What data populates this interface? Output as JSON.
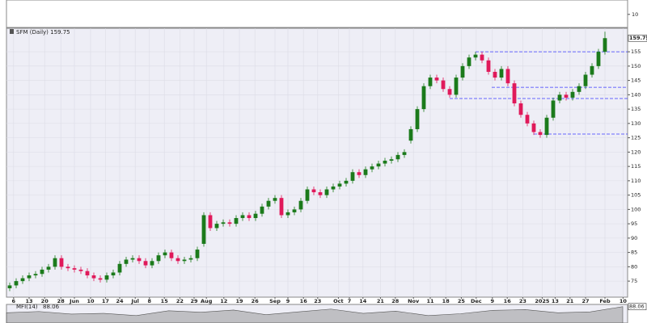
{
  "chart_data": [
    {
      "type": "candlestick",
      "title": "SFM (Daily) 159.75",
      "up_color": "#1b7a1b",
      "down_color": "#e0195a",
      "level_color": "#3a3aff",
      "grid": true,
      "xlim": [
        -0.5,
        95.5
      ],
      "ylim": [
        69.4,
        163.2
      ],
      "yticks": [
        75,
        80,
        85,
        90,
        95,
        100,
        105,
        110,
        115,
        120,
        125,
        130,
        135,
        140,
        145,
        150,
        155
      ],
      "xticks": [
        {
          "value": 0.6,
          "label": "6"
        },
        {
          "value": 3,
          "label": "13"
        },
        {
          "value": 5.4,
          "label": "20"
        },
        {
          "value": 7.9,
          "label": "28"
        },
        {
          "value": 10,
          "label": "Jun"
        },
        {
          "value": 12.5,
          "label": "10"
        },
        {
          "value": 14.8,
          "label": "17"
        },
        {
          "value": 17,
          "label": "24"
        },
        {
          "value": 19.4,
          "label": "Jul"
        },
        {
          "value": 21.6,
          "label": "8"
        },
        {
          "value": 23.9,
          "label": "15"
        },
        {
          "value": 26.3,
          "label": "22"
        },
        {
          "value": 28.5,
          "label": "29"
        },
        {
          "value": 30.4,
          "label": "Aug"
        },
        {
          "value": 33.1,
          "label": "12"
        },
        {
          "value": 35.5,
          "label": "19"
        },
        {
          "value": 37.9,
          "label": "26"
        },
        {
          "value": 41,
          "label": "Sep"
        },
        {
          "value": 43,
          "label": "9"
        },
        {
          "value": 45.4,
          "label": "16"
        },
        {
          "value": 47.6,
          "label": "23"
        },
        {
          "value": 50.8,
          "label": "Oct"
        },
        {
          "value": 52.5,
          "label": "7"
        },
        {
          "value": 54.6,
          "label": "14"
        },
        {
          "value": 57.3,
          "label": "21"
        },
        {
          "value": 59.6,
          "label": "28"
        },
        {
          "value": 62.4,
          "label": "Nov"
        },
        {
          "value": 65,
          "label": "11"
        },
        {
          "value": 67.4,
          "label": "18"
        },
        {
          "value": 69.8,
          "label": "25"
        },
        {
          "value": 72.1,
          "label": "Dec"
        },
        {
          "value": 74.6,
          "label": "9"
        },
        {
          "value": 76.9,
          "label": "16"
        },
        {
          "value": 79.3,
          "label": "23"
        },
        {
          "value": 82.3,
          "label": "2025"
        },
        {
          "value": 84.3,
          "label": "13"
        },
        {
          "value": 86.6,
          "label": "21"
        },
        {
          "value": 89,
          "label": "27"
        },
        {
          "value": 92,
          "label": "Feb"
        },
        {
          "value": 94.8,
          "label": "10"
        }
      ],
      "levels": [
        {
          "value": 155,
          "start": 72
        },
        {
          "value": 142.6,
          "start": 74.5
        },
        {
          "value": 138.7,
          "start": 68
        },
        {
          "value": 126.3,
          "start": 81
        }
      ],
      "open": [
        72.5,
        73.5,
        75,
        76,
        77,
        77.5,
        79,
        80,
        83,
        80,
        79.5,
        79,
        78.5,
        77,
        76,
        75.5,
        77,
        78,
        81,
        82.5,
        83,
        82,
        80.5,
        82,
        84,
        85,
        83,
        82,
        82.5,
        83,
        88,
        98,
        93.5,
        95,
        95.5,
        95,
        97,
        98,
        97,
        98.5,
        101,
        103,
        104,
        98,
        99,
        100,
        103,
        107,
        106,
        105,
        107,
        108,
        109,
        110,
        113,
        112,
        114,
        115,
        116,
        117,
        117.5,
        119,
        124,
        128,
        135,
        143,
        146,
        145,
        142,
        140,
        146,
        150,
        153,
        154,
        152,
        148,
        146,
        149,
        144,
        137,
        133,
        130,
        127,
        126,
        132,
        138,
        140,
        139,
        141,
        143,
        147,
        150,
        155
      ],
      "high": [
        74.5,
        76,
        77,
        78,
        78.5,
        80,
        81,
        84,
        84,
        81,
        80.5,
        80,
        79.5,
        78,
        77,
        78,
        79,
        82,
        83.5,
        84,
        84,
        83,
        83,
        85,
        86,
        86,
        84,
        83.5,
        84,
        87,
        99,
        99,
        96,
        96.5,
        96.5,
        98,
        99,
        99,
        99.5,
        102,
        104,
        105,
        105,
        100,
        101,
        104,
        108,
        108,
        107,
        108,
        109,
        110,
        111,
        114,
        114,
        115,
        116,
        117,
        118,
        118.5,
        120,
        121,
        129,
        136,
        144,
        147,
        147,
        146,
        143,
        147,
        151,
        154,
        155,
        155,
        153,
        149,
        150,
        150,
        145,
        138,
        134,
        131,
        128,
        133,
        139,
        141,
        141,
        142,
        144,
        148,
        151,
        156,
        162
      ],
      "low": [
        71.5,
        72.5,
        74,
        75,
        76,
        76.5,
        78,
        79,
        79,
        78.5,
        78,
        77.5,
        76,
        75,
        74.5,
        74.5,
        76,
        77,
        80,
        81.5,
        81,
        79.5,
        79.5,
        81,
        83,
        82,
        81,
        81,
        81.5,
        82,
        87,
        92.5,
        92.5,
        94,
        94,
        94,
        96,
        96,
        96,
        97.5,
        100,
        102,
        97,
        97,
        98,
        99,
        102,
        105,
        104,
        104,
        106,
        107,
        108,
        109,
        111,
        111,
        113,
        114,
        115,
        116,
        116.5,
        118,
        123,
        127,
        134,
        142,
        144,
        141,
        139,
        139,
        145,
        149,
        152,
        151,
        147,
        145,
        145,
        143,
        136,
        132,
        129,
        126,
        125,
        125,
        131,
        137,
        138,
        138,
        140,
        142,
        146,
        149,
        154
      ],
      "close": [
        73.5,
        75,
        76,
        77,
        77.5,
        79,
        80,
        83,
        80,
        79.5,
        79,
        78.5,
        77,
        76,
        75.5,
        77,
        78,
        81,
        82.5,
        83,
        82,
        80.5,
        82,
        84,
        85,
        83,
        82,
        82.5,
        83,
        86,
        98,
        93.5,
        95,
        95.5,
        95,
        97,
        98,
        97,
        98.5,
        101,
        103,
        104,
        98,
        99,
        100,
        103,
        107,
        106,
        105,
        107,
        108,
        109,
        110,
        113,
        112,
        114,
        115,
        116,
        117,
        117.5,
        119,
        120,
        128,
        135,
        143,
        146,
        145,
        142,
        140,
        146,
        150,
        153,
        154,
        152,
        148,
        146,
        149,
        144,
        137,
        133,
        130,
        127,
        126,
        132,
        138,
        140,
        139,
        141,
        143,
        147,
        150,
        155,
        159.75
      ]
    },
    {
      "type": "indicator",
      "ylim": [
        0,
        21
      ],
      "yticks": [
        10
      ]
    },
    {
      "type": "area",
      "title": "MFI(14)",
      "color": "#999999",
      "ylim": [
        0,
        100
      ],
      "values": [
        55,
        62,
        48,
        52,
        40,
        66,
        58,
        70,
        45,
        60,
        75,
        52,
        64,
        40,
        50,
        68,
        72,
        55,
        60,
        88.06
      ]
    }
  ]
}
